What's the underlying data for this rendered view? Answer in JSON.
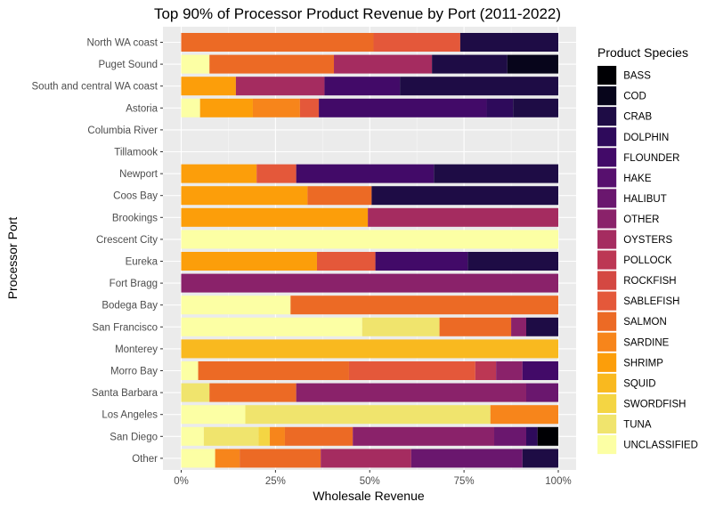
{
  "chart_data": {
    "type": "bar",
    "orientation": "horizontal",
    "stacked": "percent",
    "title": "Top 90% of Processor Product Revenue by Port (2011-2022)",
    "xlabel": "Wholesale Revenue",
    "ylabel": "Processor Port",
    "xlim": [
      0,
      1
    ],
    "x_ticks": [
      "0%",
      "25%",
      "50%",
      "75%",
      "100%"
    ],
    "x_tick_values": [
      0,
      0.25,
      0.5,
      0.75,
      1
    ],
    "legend_title": "Product Species",
    "legend_position": "right",
    "grid": true,
    "categories": [
      "North WA coast",
      "Puget Sound",
      "South and central WA coast",
      "Astoria",
      "Columbia River",
      "Tillamook",
      "Newport",
      "Coos Bay",
      "Brookings",
      "Crescent City",
      "Eureka",
      "Fort Bragg",
      "Bodega Bay",
      "San Francisco",
      "Monterey",
      "Morro Bay",
      "Santa Barbara",
      "Los Angeles",
      "San Diego",
      "Other"
    ],
    "species": [
      {
        "name": "BASS",
        "color": "#000004"
      },
      {
        "name": "COD",
        "color": "#07051B"
      },
      {
        "name": "CRAB",
        "color": "#1E0C45"
      },
      {
        "name": "DOLPHIN",
        "color": "#2E0A5B"
      },
      {
        "name": "FLOUNDER",
        "color": "#420A68"
      },
      {
        "name": "HAKE",
        "color": "#57106E"
      },
      {
        "name": "HALIBUT",
        "color": "#6A176E"
      },
      {
        "name": "OTHER",
        "color": "#8A226A"
      },
      {
        "name": "OYSTERS",
        "color": "#A52C60"
      },
      {
        "name": "POLLOCK",
        "color": "#BC3754"
      },
      {
        "name": "ROCKFISH",
        "color": "#D44842"
      },
      {
        "name": "SABLEFISH",
        "color": "#E4583A"
      },
      {
        "name": "SALMON",
        "color": "#EC6A25"
      },
      {
        "name": "SARDINE",
        "color": "#F7851B"
      },
      {
        "name": "SHRIMP",
        "color": "#FC9E0A"
      },
      {
        "name": "SQUID",
        "color": "#F9B91F"
      },
      {
        "name": "SWORDFISH",
        "color": "#F4D543"
      },
      {
        "name": "TUNA",
        "color": "#F0E46D"
      },
      {
        "name": "UNCLASSIFIED",
        "color": "#FCFFA4"
      }
    ],
    "rows": [
      {
        "port": "North WA coast",
        "segments": [
          [
            "SALMON",
            0.51
          ],
          [
            "SABLEFISH",
            0.23
          ],
          [
            "CRAB",
            0.26
          ]
        ]
      },
      {
        "port": "Puget Sound",
        "segments": [
          [
            "UNCLASSIFIED",
            0.075
          ],
          [
            "SALMON",
            0.33
          ],
          [
            "OYSTERS",
            0.26
          ],
          [
            "CRAB",
            0.2
          ],
          [
            "COD",
            0.135
          ]
        ]
      },
      {
        "port": "South and central WA coast",
        "segments": [
          [
            "SHRIMP",
            0.145
          ],
          [
            "OYSTERS",
            0.235
          ],
          [
            "FLOUNDER",
            0.2
          ],
          [
            "CRAB",
            0.42
          ]
        ]
      },
      {
        "port": "Astoria",
        "segments": [
          [
            "UNCLASSIFIED",
            0.05
          ],
          [
            "SHRIMP",
            0.14
          ],
          [
            "SARDINE",
            0.125
          ],
          [
            "SABLEFISH",
            0.05
          ],
          [
            "FLOUNDER",
            0.445
          ],
          [
            "DOLPHIN",
            0.07
          ],
          [
            "CRAB",
            0.12
          ]
        ]
      },
      {
        "port": "Columbia River",
        "segments": []
      },
      {
        "port": "Tillamook",
        "segments": []
      },
      {
        "port": "Newport",
        "segments": [
          [
            "SHRIMP",
            0.2
          ],
          [
            "SABLEFISH",
            0.105
          ],
          [
            "FLOUNDER",
            0.365
          ],
          [
            "CRAB",
            0.33
          ]
        ]
      },
      {
        "port": "Coos Bay",
        "segments": [
          [
            "SHRIMP",
            0.335
          ],
          [
            "SALMON",
            0.17
          ],
          [
            "CRAB",
            0.495
          ]
        ]
      },
      {
        "port": "Brookings",
        "segments": [
          [
            "SHRIMP",
            0.495
          ],
          [
            "OYSTERS",
            0.505
          ]
        ]
      },
      {
        "port": "Crescent City",
        "segments": [
          [
            "UNCLASSIFIED",
            1.0
          ]
        ]
      },
      {
        "port": "Eureka",
        "segments": [
          [
            "SHRIMP",
            0.36
          ],
          [
            "SABLEFISH",
            0.155
          ],
          [
            "FLOUNDER",
            0.245
          ],
          [
            "CRAB",
            0.24
          ]
        ]
      },
      {
        "port": "Fort Bragg",
        "segments": [
          [
            "OTHER",
            1.0
          ]
        ]
      },
      {
        "port": "Bodega Bay",
        "segments": [
          [
            "UNCLASSIFIED",
            0.29
          ],
          [
            "SALMON",
            0.71
          ]
        ]
      },
      {
        "port": "San Francisco",
        "segments": [
          [
            "UNCLASSIFIED",
            0.48
          ],
          [
            "TUNA",
            0.205
          ],
          [
            "SALMON",
            0.19
          ],
          [
            "OTHER",
            0.04
          ],
          [
            "CRAB",
            0.085
          ]
        ]
      },
      {
        "port": "Monterey",
        "segments": [
          [
            "SQUID",
            1.0
          ]
        ]
      },
      {
        "port": "Morro Bay",
        "segments": [
          [
            "UNCLASSIFIED",
            0.045
          ],
          [
            "SALMON",
            0.4
          ],
          [
            "SABLEFISH",
            0.335
          ],
          [
            "POLLOCK",
            0.055
          ],
          [
            "OTHER",
            0.07
          ],
          [
            "FLOUNDER",
            0.095
          ]
        ]
      },
      {
        "port": "Santa Barbara",
        "segments": [
          [
            "TUNA",
            0.075
          ],
          [
            "SALMON",
            0.23
          ],
          [
            "OTHER",
            0.61
          ],
          [
            "HALIBUT",
            0.085
          ]
        ]
      },
      {
        "port": "Los Angeles",
        "segments": [
          [
            "UNCLASSIFIED",
            0.17
          ],
          [
            "TUNA",
            0.65
          ],
          [
            "SARDINE",
            0.18
          ]
        ]
      },
      {
        "port": "San Diego",
        "segments": [
          [
            "UNCLASSIFIED",
            0.06
          ],
          [
            "TUNA",
            0.145
          ],
          [
            "SWORDFISH",
            0.03
          ],
          [
            "SARDINE",
            0.04
          ],
          [
            "SALMON",
            0.18
          ],
          [
            "OTHER",
            0.375
          ],
          [
            "HALIBUT",
            0.085
          ],
          [
            "DOLPHIN",
            0.03
          ],
          [
            "BASS",
            0.055
          ]
        ]
      },
      {
        "port": "Other",
        "segments": [
          [
            "UNCLASSIFIED",
            0.09
          ],
          [
            "SARDINE",
            0.065
          ],
          [
            "SALMON",
            0.215
          ],
          [
            "OYSTERS",
            0.24
          ],
          [
            "HALIBUT",
            0.295
          ],
          [
            "CRAB",
            0.095
          ]
        ]
      }
    ]
  }
}
